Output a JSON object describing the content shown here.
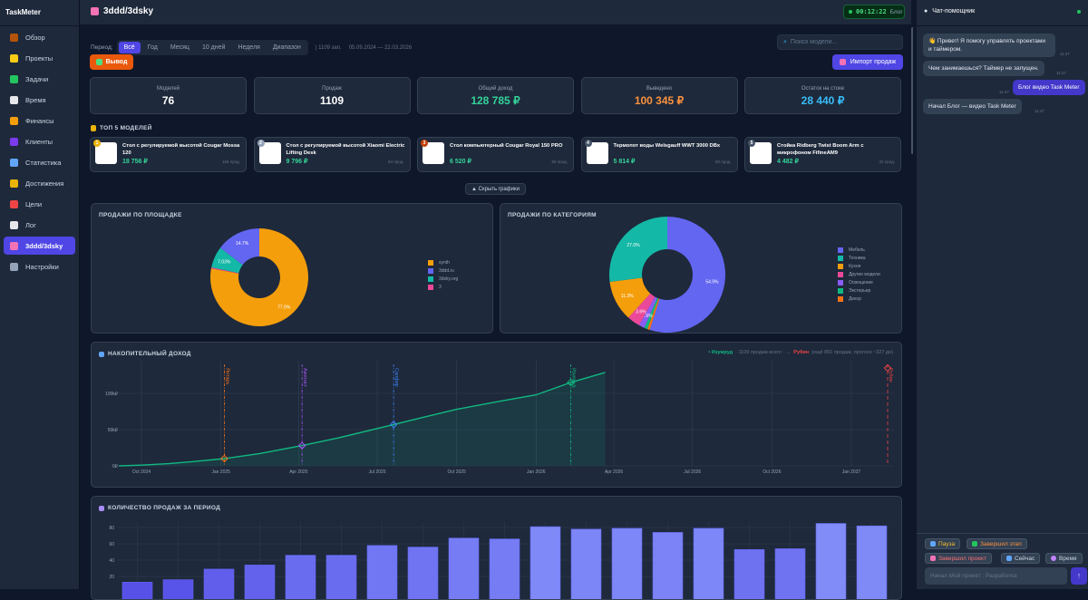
{
  "app": {
    "name": "TaskMeter"
  },
  "sidebar": {
    "items": [
      {
        "label": "Обзор",
        "icon": "house-icon",
        "color": "#b45309"
      },
      {
        "label": "Проекты",
        "icon": "folder-icon",
        "color": "#facc15"
      },
      {
        "label": "Задачи",
        "icon": "check-icon",
        "color": "#22c55e"
      },
      {
        "label": "Время",
        "icon": "clock-icon",
        "color": "#e5e7eb"
      },
      {
        "label": "Финансы",
        "icon": "money-bag-icon",
        "color": "#f59e0b"
      },
      {
        "label": "Клиенты",
        "icon": "user-icon",
        "color": "#7c3aed"
      },
      {
        "label": "Статистика",
        "icon": "bar-chart-icon",
        "color": "#60a5fa"
      },
      {
        "label": "Достижения",
        "icon": "trophy-icon",
        "color": "#eab308"
      },
      {
        "label": "Цели",
        "icon": "target-icon",
        "color": "#ef4444"
      },
      {
        "label": "Лог",
        "icon": "clipboard-icon",
        "color": "#e5e7eb"
      },
      {
        "label": "3ddd/3dsky",
        "icon": "shop-icon",
        "color": "#f472b6",
        "active": true
      },
      {
        "label": "Настройки",
        "icon": "gear-icon",
        "color": "#94a3b8"
      }
    ]
  },
  "header": {
    "title": "3ddd/3dsky",
    "timer": "00:12:22",
    "timer_tag": "Блог"
  },
  "filters": {
    "period_label": "Период:",
    "periods": [
      "Всё",
      "Год",
      "Месяц",
      "10 дней",
      "Неделя",
      "Диапазон"
    ],
    "selected": "Всё",
    "records": "| 1109 зап.",
    "range": "05.09.2024 — 22.03.2026",
    "search_placeholder": "Поиск модели...",
    "withdraw_label": "Вывод",
    "import_label": "Импорт продаж"
  },
  "stats": [
    {
      "label": "Моделей",
      "value": "76",
      "color": "#ffffff"
    },
    {
      "label": "Продаж",
      "value": "1109",
      "color": "#ffffff"
    },
    {
      "label": "Общий доход",
      "value": "128 785 ₽",
      "color": "#34d399"
    },
    {
      "label": "Выведено",
      "value": "100 345 ₽",
      "color": "#fb923c"
    },
    {
      "label": "Остаток на стоке",
      "value": "28 440 ₽",
      "color": "#38bdf8"
    }
  ],
  "top_models": {
    "title": "ТОП 5 МОДЕЛЕЙ",
    "items": [
      {
        "rank": "1",
        "name": "Стол с регулируемой высотой Cougar Mossa 120",
        "price": "18 756 ₽",
        "count": "166 прод.",
        "rank_color": "#eab308"
      },
      {
        "rank": "2",
        "name": "Стол с регулируемой высотой Xiaomi Electric Lifting Desk",
        "price": "9 796 ₽",
        "count": "94 прод.",
        "rank_color": "#94a3b8"
      },
      {
        "rank": "3",
        "name": "Стол компьютерный Cougar Royal 150 PRO",
        "price": "6 520 ₽",
        "count": "50 прод.",
        "rank_color": "#c2410c"
      },
      {
        "rank": "4",
        "name": "Термопот воды Welsgauff WWT 3000 DBx",
        "price": "5 814 ₽",
        "count": "50 прод.",
        "rank_color": "#475569"
      },
      {
        "rank": "5",
        "name": "Стойка Ridberg Twist Boom Arm с микрофоном FifineAM9",
        "price": "4 482 ₽",
        "count": "32 прод.",
        "rank_color": "#475569"
      }
    ]
  },
  "toggle_charts_label": "▲ Скрыть графики",
  "chart_data": [
    {
      "type": "pie",
      "title": "ПРОДАЖИ ПО ПЛОЩАДКЕ",
      "labels": [
        "synth",
        "3ddd.ru",
        "3dsky.org",
        "3"
      ],
      "values": [
        77.9,
        14.7,
        7.03,
        0.37
      ],
      "slice_labels": [
        "77.9%",
        "14.7%",
        "7.03%",
        ""
      ],
      "colors": [
        "#f59e0b",
        "#6366f1",
        "#14b8a6",
        "#ec4899"
      ],
      "hole": true,
      "legend": "right"
    },
    {
      "type": "pie",
      "title": "ПРОДАЖИ ПО КАТЕГОРИЯМ",
      "labels": [
        "Мебель",
        "Техника",
        "Кухня",
        "Другие модели",
        "Освещение",
        "Экстерьер",
        "Декор"
      ],
      "values": [
        54.9,
        27.0,
        11.3,
        3.6,
        1.6,
        0.9,
        0.7
      ],
      "slice_labels": [
        "54.9%",
        "27.0%",
        "11.3%",
        "3.6%",
        "1.6%",
        "",
        ""
      ],
      "colors": [
        "#6366f1",
        "#14b8a6",
        "#f59e0b",
        "#ec4899",
        "#8b5cf6",
        "#10b981",
        "#f97316"
      ],
      "hole": true,
      "legend": "right"
    },
    {
      "type": "area",
      "title": "НАКОПИТЕЛЬНЫЙ ДОХОД",
      "legend_text": {
        "current": "• Изумруд",
        "total": "· 1109 продаж всего · →",
        "next": "Рубин",
        "forecast": "(ещё 891 продаж, прогноз ~327 дн)"
      },
      "x": [
        "2024-09-05",
        "2024-10-01",
        "2024-11-01",
        "2024-12-01",
        "2025-01-05",
        "2025-02-15",
        "2025-04-05",
        "2025-05-15",
        "2025-07-20",
        "2025-08-20",
        "2025-10-01",
        "2025-11-15",
        "2026-01-01",
        "2026-02-10",
        "2026-03-22"
      ],
      "y": [
        0,
        1000,
        3000,
        6000,
        10000,
        17000,
        28000,
        38000,
        57000,
        66000,
        78000,
        88000,
        98000,
        115000,
        128785
      ],
      "ylim": [
        0,
        140000
      ],
      "yticks": [
        {
          "v": 0,
          "label": "0₽"
        },
        {
          "v": 50000,
          "label": "50k₽"
        },
        {
          "v": 100000,
          "label": "100k₽"
        }
      ],
      "xticks": [
        {
          "d": "2024-10-01",
          "label": "Oct 2024"
        },
        {
          "d": "2025-01-01",
          "label": "Jan 2025"
        },
        {
          "d": "2025-04-01",
          "label": "Apr 2025"
        },
        {
          "d": "2025-07-01",
          "label": "Jul 2025"
        },
        {
          "d": "2025-10-01",
          "label": "Oct 2025"
        },
        {
          "d": "2026-01-01",
          "label": "Jan 2026"
        },
        {
          "d": "2026-04-01",
          "label": "Apr 2026"
        },
        {
          "d": "2026-07-01",
          "label": "Jul 2026"
        },
        {
          "d": "2026-10-01",
          "label": "Oct 2026"
        },
        {
          "d": "2027-01-01",
          "label": "Jan 2027"
        }
      ],
      "milestones": [
        {
          "name": "Янтарь",
          "date": "2025-01-05",
          "value": 10000,
          "color": "#f97316"
        },
        {
          "name": "Аметист",
          "date": "2025-04-05",
          "value": 28000,
          "color": "#a855f7"
        },
        {
          "name": "Сапфир",
          "date": "2025-07-20",
          "value": 57000,
          "color": "#3b82f6"
        },
        {
          "name": "Изумруд",
          "date": "2026-02-10",
          "value": 115000,
          "color": "#10b981"
        },
        {
          "name": "Рубин",
          "date": "2027-02-12",
          "color": "#ef4444",
          "forecast": true
        }
      ],
      "line_color": "#10b981",
      "grid": true
    },
    {
      "type": "bar",
      "title": "КОЛИЧЕСТВО ПРОДАЖ ЗА ПЕРИОД",
      "values": [
        13,
        16,
        29,
        34,
        46,
        46,
        58,
        56,
        67,
        66,
        81,
        78,
        79,
        74,
        79,
        53,
        54,
        85,
        82
      ],
      "yticks": [
        20,
        40,
        60,
        80
      ],
      "colors": [
        "#4f46e5",
        "#818cf8"
      ],
      "grid": true
    }
  ],
  "chat": {
    "title": "Чат-помощник",
    "messages": [
      {
        "text": "👋 Привет! Я помогу управлять проектами и таймером.",
        "time": "11:47",
        "from": "bot"
      },
      {
        "text": "Чем занимаешься? Таймер не запущен.",
        "time": "11:47",
        "from": "bot"
      },
      {
        "text": "Блог видео Task Meter",
        "time": "11:47",
        "from": "me"
      },
      {
        "text": "Начал Блог — видео Task Meter",
        "time": "11:47",
        "from": "bot"
      }
    ],
    "quick": [
      "Пауза",
      "Завершил этап",
      "Завершил проект",
      "Сейчас",
      "Время"
    ],
    "input_placeholder": "Начал Мой проект : Разработка",
    "send": "↑"
  }
}
